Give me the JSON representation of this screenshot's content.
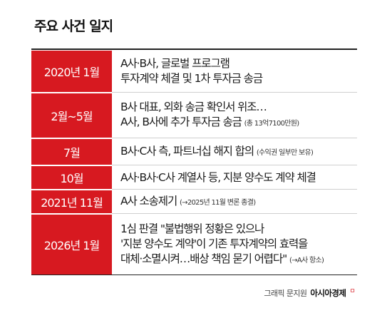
{
  "title": "주요 사건 일지",
  "rows": [
    {
      "date": "2020년 1월",
      "lines": [
        "A사·B사, 글로벌 프로그램",
        "투자계약 체결 및 1차 투자금 송금"
      ],
      "note": ""
    },
    {
      "date": "2월~5월",
      "lines": [
        "B사 대표, 외화 송금 확인서 위조…",
        "A사, B사에 추가 투자금 송금"
      ],
      "note": "(총 13억7100만원)"
    },
    {
      "date": "7월",
      "lines": [
        "B사·C사 측, 파트너십 해지 합의"
      ],
      "note": "(수익권 일부만 보유)"
    },
    {
      "date": "10월",
      "lines": [
        "A사·B사·C사 계열사 등, 지분 양수도 계약 체결"
      ],
      "note": ""
    },
    {
      "date": "2021년 11월",
      "lines": [
        "A사 소송제기"
      ],
      "note": "(→2025년 11월 변론 종결)"
    },
    {
      "date": "2026년 1월",
      "lines": [
        "1심 판결 \"불법행위 정황은 있으나",
        "'지분 양수도 계약'이 기존 투자계약의 효력을",
        "대체·소멸시켜…배상 책임 묻기 어렵다\""
      ],
      "note": "(→A사 항소)"
    }
  ],
  "credit": {
    "label": "그래픽 문지원",
    "brand": "아시아경제",
    "mark": "ㅁ"
  },
  "colors": {
    "accent": "#d71920",
    "text": "#1a1a1a"
  }
}
